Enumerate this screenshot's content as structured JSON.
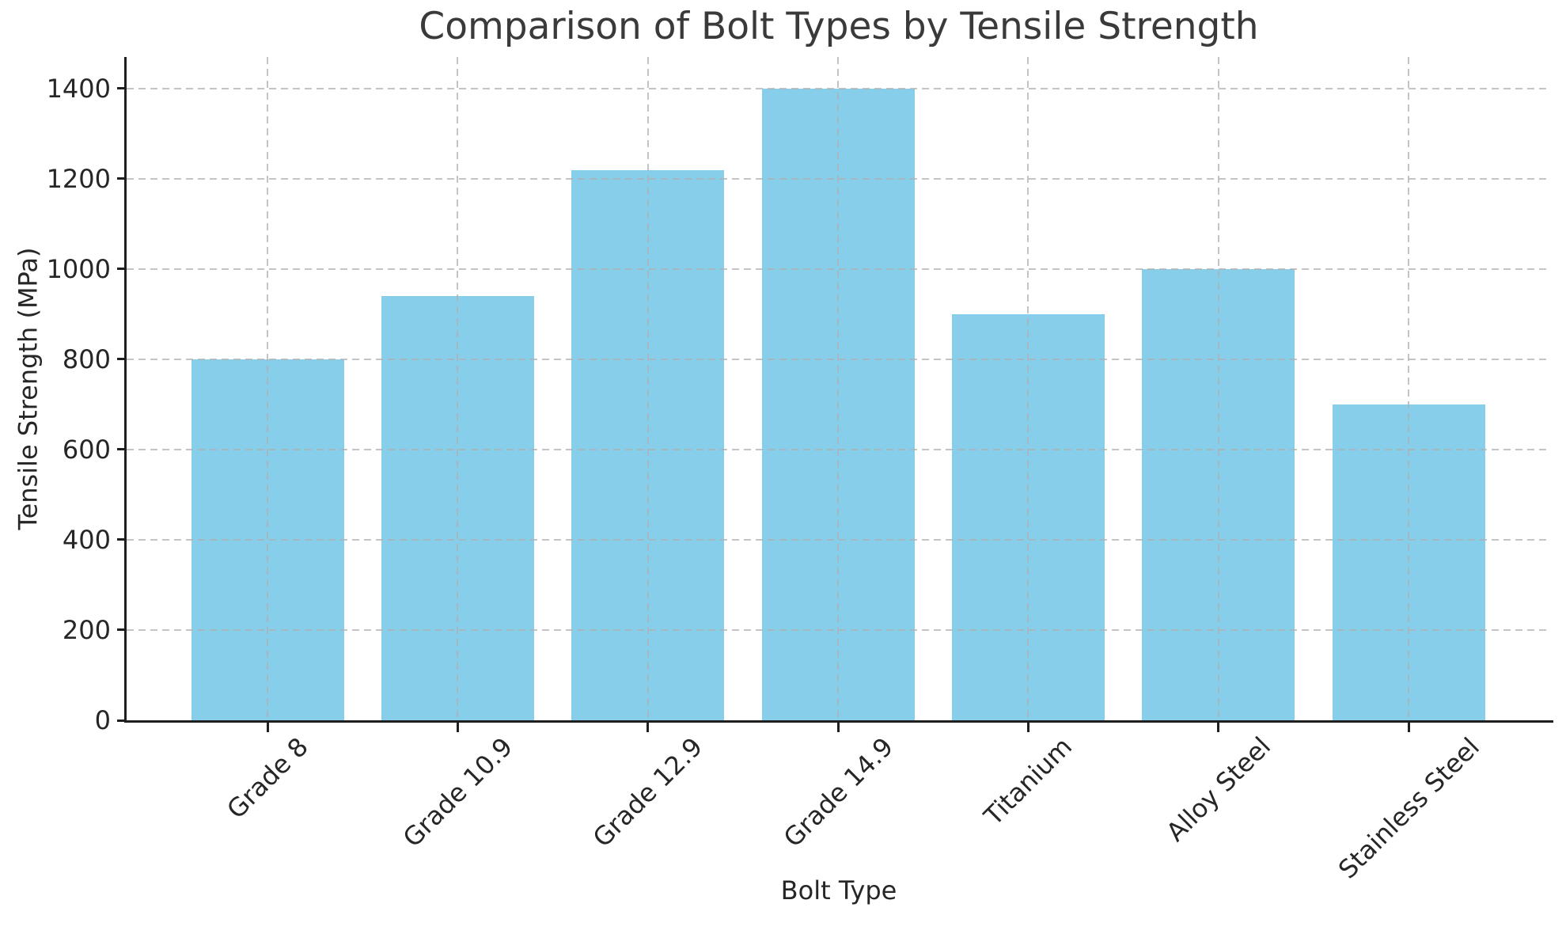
{
  "chart_data": {
    "type": "bar",
    "title": "Comparison of Bolt Types by Tensile Strength",
    "xlabel": "Bolt Type",
    "ylabel": "Tensile Strength (MPa)",
    "categories": [
      "Grade 8",
      "Grade 10.9",
      "Grade 12.9",
      "Grade 14.9",
      "Titanium",
      "Alloy Steel",
      "Stainless Steel"
    ],
    "values": [
      800,
      940,
      1220,
      1400,
      900,
      1000,
      700
    ],
    "yticks": [
      0,
      200,
      400,
      600,
      800,
      1000,
      1200,
      1400
    ],
    "ylim": [
      0,
      1470
    ],
    "bar_color": "#87CEEB",
    "grid": {
      "visible": true,
      "linestyle": "dashed",
      "color": "#b0b0b0",
      "alpha": 0.75,
      "drawn_above_bars": true
    },
    "spines": {
      "top": false,
      "right": false,
      "left": true,
      "bottom": true
    },
    "background_color": "#ffffff",
    "text_color": "#262626",
    "legend": null,
    "xtick_rotation_deg": 45
  }
}
